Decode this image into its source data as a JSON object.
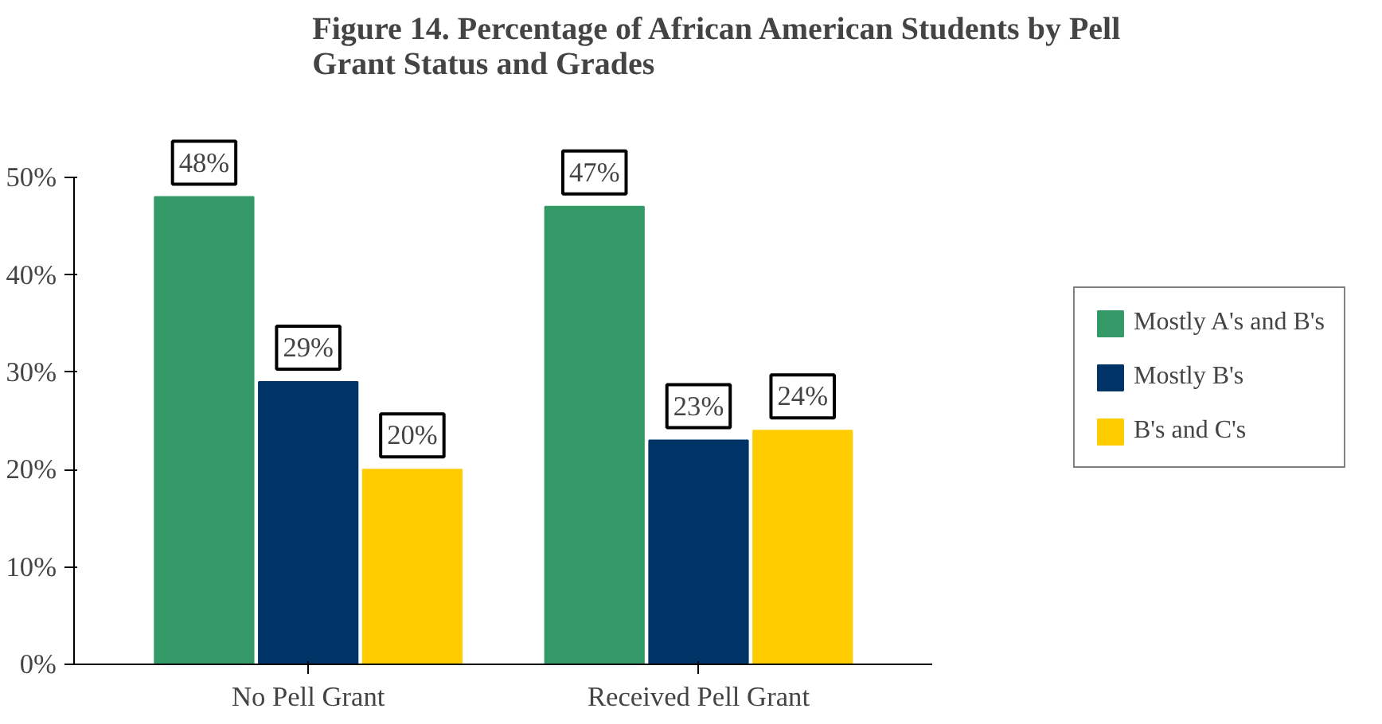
{
  "chart_data": {
    "type": "bar",
    "title": "Figure 14. Percentage of African American Students by Pell Grant Status and Grades",
    "categories": [
      "No Pell Grant",
      "Received Pell Grant"
    ],
    "series": [
      {
        "name": "Mostly A's and B's",
        "color": "#339966",
        "values": [
          48,
          47
        ],
        "value_labels": [
          "48%",
          "47%"
        ]
      },
      {
        "name": "Mostly B's",
        "color": "#003366",
        "values": [
          29,
          23
        ],
        "value_labels": [
          "29%",
          "23%"
        ]
      },
      {
        "name": "B's and C's",
        "color": "#ffcc00",
        "values": [
          20,
          24
        ],
        "value_labels": [
          "20%",
          "24%"
        ]
      }
    ],
    "ylim": [
      0,
      50
    ],
    "yticks": [
      {
        "value": 0,
        "label": "0%"
      },
      {
        "value": 10,
        "label": "10%"
      },
      {
        "value": 20,
        "label": "20%"
      },
      {
        "value": 30,
        "label": "30%"
      },
      {
        "value": 40,
        "label": "40%"
      },
      {
        "value": 50,
        "label": "50%"
      }
    ],
    "grid": false,
    "legend": "right"
  }
}
